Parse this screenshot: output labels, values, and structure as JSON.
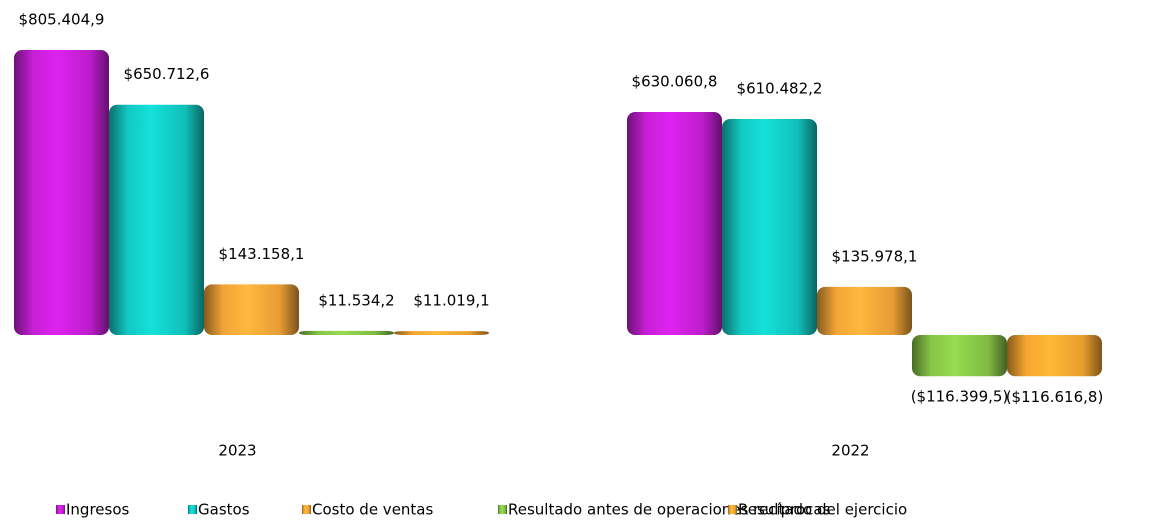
{
  "chart_data": {
    "type": "bar",
    "categories": [
      "2023",
      "2022"
    ],
    "series": [
      {
        "name": "Ingresos",
        "color": "#c61fd6",
        "values": [
          805404.9,
          630060.8
        ],
        "value_labels": [
          "$805.404,9",
          "$630.060,8"
        ]
      },
      {
        "name": "Gastos",
        "color": "#12c9c3",
        "values": [
          650712.6,
          610482.2
        ],
        "value_labels": [
          "$650.712,6",
          "$610.482,2"
        ]
      },
      {
        "name": "Costo de ventas",
        "color": "#f2a437",
        "values": [
          143158.1,
          135978.1
        ],
        "value_labels": [
          "$143.158,1",
          "$135.978,1"
        ]
      },
      {
        "name": "Resultado antes de operaciones recíprocas",
        "color": "#86c447",
        "values": [
          11534.2,
          -116399.5
        ],
        "value_labels": [
          "$11.534,2",
          "($116.399,5)"
        ]
      },
      {
        "name": "Resultado del ejercicio",
        "color": "#f5a530",
        "values": [
          11019.1,
          -116616.8
        ],
        "value_labels": [
          "$11.019,1",
          "($116.616,8)"
        ]
      }
    ],
    "legend": "bottom"
  }
}
